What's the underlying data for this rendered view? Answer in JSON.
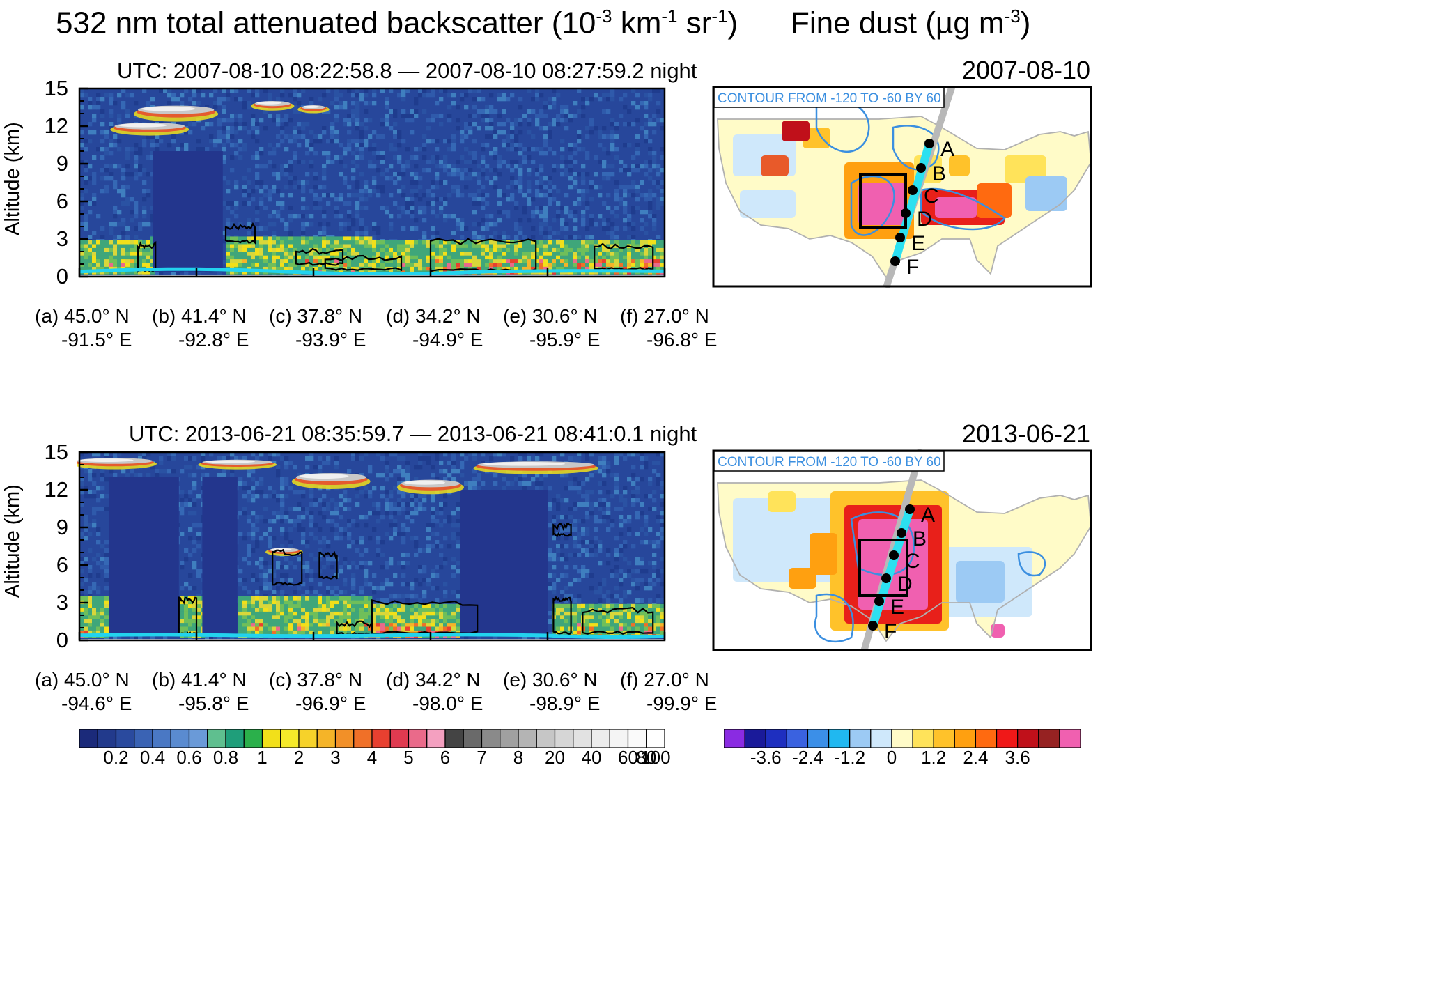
{
  "left_title": "532 nm  total attenuated backscatter (10",
  "left_title_exp1": "-3",
  "left_title_mid": " km",
  "left_title_exp2": "-1",
  "left_title_mid2": " sr",
  "left_title_exp3": "-1",
  "left_title_end": ")",
  "right_title": "Fine dust (µg m",
  "right_title_exp": "-3",
  "right_title_end": ")",
  "ylabel": "Altitude (km)",
  "colors": {
    "backscatter_bg": "#27479b",
    "surface": "#22d3ee",
    "contour": "#000000",
    "map_contour": "#3b8fe0",
    "track_gray": "#b8b8b8",
    "track_cyan": "#2ce0f0"
  },
  "chart_data": [
    {
      "type": "heatmap",
      "panel": "curtain-1",
      "subtitle": "UTC: 2007-08-10 08:22:58.8 — 2007-08-10 08:27:59.2 night",
      "ylim": [
        0,
        15
      ],
      "yticks": [
        "15",
        "12",
        "9",
        "6",
        "3",
        "0"
      ],
      "ytick_values": [
        15,
        12,
        9,
        6,
        3,
        0
      ],
      "x_labels": [
        {
          "letter": "(a)",
          "lat": "45.0° N",
          "lon": "-91.5° E"
        },
        {
          "letter": "(b)",
          "lat": "41.4° N",
          "lon": "-92.8° E"
        },
        {
          "letter": "(c)",
          "lat": "37.8° N",
          "lon": "-93.9° E"
        },
        {
          "letter": "(d)",
          "lat": "34.2° N",
          "lon": "-94.9° E"
        },
        {
          "letter": "(e)",
          "lat": "30.6° N",
          "lon": "-95.9° E"
        },
        {
          "letter": "(f)",
          "lat": "27.0° N",
          "lon": "-96.8° E"
        }
      ]
    },
    {
      "type": "heatmap",
      "panel": "curtain-2",
      "subtitle": "UTC: 2013-06-21 08:35:59.7 — 2013-06-21 08:41:0.1 night",
      "ylim": [
        0,
        15
      ],
      "yticks": [
        "15",
        "12",
        "9",
        "6",
        "3",
        "0"
      ],
      "ytick_values": [
        15,
        12,
        9,
        6,
        3,
        0
      ],
      "x_labels": [
        {
          "letter": "(a)",
          "lat": "45.0° N",
          "lon": "-94.6° E"
        },
        {
          "letter": "(b)",
          "lat": "41.4° N",
          "lon": "-95.8° E"
        },
        {
          "letter": "(c)",
          "lat": "37.8° N",
          "lon": "-96.9° E"
        },
        {
          "letter": "(d)",
          "lat": "34.2° N",
          "lon": "-98.0° E"
        },
        {
          "letter": "(e)",
          "lat": "30.6° N",
          "lon": "-98.9° E"
        },
        {
          "letter": "(f)",
          "lat": "27.0° N",
          "lon": "-99.9° E"
        }
      ]
    },
    {
      "type": "heatmap",
      "panel": "map-1",
      "date": "2007-08-10",
      "contour_note": "CONTOUR FROM -120 TO -60 BY 60",
      "track_points": [
        "A",
        "B",
        "C",
        "D",
        "E",
        "F"
      ]
    },
    {
      "type": "heatmap",
      "panel": "map-2",
      "date": "2013-06-21",
      "contour_note": "CONTOUR FROM -120 TO -60 BY 60",
      "track_points": [
        "A",
        "B",
        "C",
        "D",
        "E",
        "F"
      ]
    },
    {
      "type": "colorbar",
      "panel": "colorbar-backscatter",
      "labels": [
        "0.2",
        "0.4",
        "0.6",
        "0.8",
        "1",
        "2",
        "3",
        "4",
        "5",
        "6",
        "7",
        "8",
        "20",
        "40",
        "60",
        "80",
        "100"
      ],
      "colors": [
        "#1b2a7a",
        "#223a8c",
        "#2a4a9e",
        "#3a63b4",
        "#4a78c4",
        "#5a8bd0",
        "#6a9ad8",
        "#5fbf8f",
        "#1f9e7a",
        "#2bb04b",
        "#f2e01a",
        "#f5ea2a",
        "#f6d22a",
        "#f5b428",
        "#f29028",
        "#f07028",
        "#e84030",
        "#e03a50",
        "#ea6a8a",
        "#f4a0c0",
        "#444444",
        "#6a6a6a",
        "#8a8a8a",
        "#a0a0a0",
        "#b4b4b4",
        "#c6c6c6",
        "#d6d6d6",
        "#e2e2e2",
        "#ececec",
        "#f4f4f4",
        "#fafafa",
        "#ffffff"
      ]
    },
    {
      "type": "colorbar",
      "panel": "colorbar-dust",
      "labels": [
        "-3.6",
        "-2.4",
        "-1.2",
        "0",
        "1.2",
        "2.4",
        "3.6"
      ],
      "colors": [
        "#8a2be2",
        "#1a1a9a",
        "#1e2fc0",
        "#3a62e0",
        "#3b8fe8",
        "#20b8f0",
        "#9ccaf4",
        "#cfe8fb",
        "#fffbc8",
        "#ffe35a",
        "#ffc22a",
        "#ffa010",
        "#ff6a10",
        "#f01818",
        "#c0101a",
        "#962222",
        "#f060b0"
      ]
    }
  ]
}
